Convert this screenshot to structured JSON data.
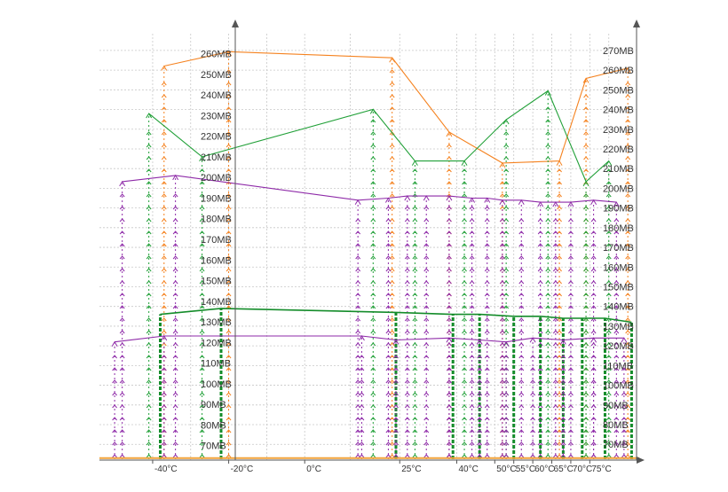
{
  "chart_data": {
    "type": "line",
    "title": "",
    "xlabel": "",
    "ylabel": "",
    "x_ticks": [
      "-40°C",
      "-20°C",
      "0°C",
      "25°C",
      "40°C",
      "50°C",
      "55°C",
      "60°C",
      "65°C",
      "70°C",
      "75°C"
    ],
    "xlim": [
      -54,
      88
    ],
    "left_axis": {
      "ticks": [
        "70MB",
        "80MB",
        "90MB",
        "100MB",
        "110MB",
        "120MB",
        "130MB",
        "140MB",
        "150MB",
        "160MB",
        "170MB",
        "180MB",
        "190MB",
        "200MB",
        "210MB",
        "220MB",
        "230MB",
        "240MB",
        "250MB",
        "260MB"
      ],
      "ylim": [
        63,
        274
      ]
    },
    "right_axis": {
      "ticks": [
        "70MB",
        "80MB",
        "90MB",
        "100MB",
        "110MB",
        "120MB",
        "130MB",
        "140MB",
        "150MB",
        "160MB",
        "170MB",
        "180MB",
        "190MB",
        "200MB",
        "210MB",
        "220MB",
        "230MB",
        "240MB",
        "250MB",
        "260MB",
        "270MB"
      ],
      "ylim": [
        62,
        283
      ]
    },
    "grid": true,
    "legend": "none",
    "series": [
      {
        "axis": "left",
        "style": "line-arrows",
        "color": "#f5821f",
        "x": [
          -37,
          -20,
          23,
          38,
          52,
          67,
          74,
          85
        ],
        "y": [
          254,
          261,
          258,
          222,
          207,
          208,
          248,
          253
        ]
      },
      {
        "axis": "left",
        "style": "line-arrows",
        "color": "#21a038",
        "x": [
          -41,
          -27,
          18,
          29,
          42,
          53,
          64,
          74,
          80
        ],
        "y": [
          231,
          210,
          233,
          208,
          208,
          228,
          242,
          198,
          208
        ]
      },
      {
        "axis": "left",
        "style": "line-arrows",
        "color": "#8e2aa8",
        "x": [
          -48,
          -34,
          14,
          22,
          27,
          32,
          38,
          44,
          48,
          52,
          57,
          62,
          66,
          70,
          76,
          82
        ],
        "y": [
          198,
          201,
          189,
          190,
          191,
          191,
          191,
          190,
          190,
          189,
          189,
          188,
          188,
          188,
          189,
          188
        ]
      },
      {
        "axis": "right",
        "style": "line-bars",
        "color": "#148c2a",
        "x": [
          -38,
          -22,
          24,
          39,
          46,
          55,
          62,
          68,
          73,
          79,
          86
        ],
        "y": [
          136,
          139,
          137,
          136,
          136,
          135,
          135,
          134,
          134,
          134,
          132
        ]
      },
      {
        "axis": "right",
        "style": "line-arrows",
        "color": "#8e2aa8",
        "x": [
          -50,
          -37,
          15,
          24,
          38,
          46,
          53,
          60,
          68,
          76,
          84
        ],
        "y": [
          122,
          125,
          125,
          123,
          124,
          123,
          122,
          124,
          123,
          124,
          124
        ]
      },
      {
        "axis": "right",
        "style": "line",
        "color": "#f2a33a",
        "x": [
          -54,
          88
        ],
        "y": [
          63,
          63
        ]
      }
    ]
  }
}
